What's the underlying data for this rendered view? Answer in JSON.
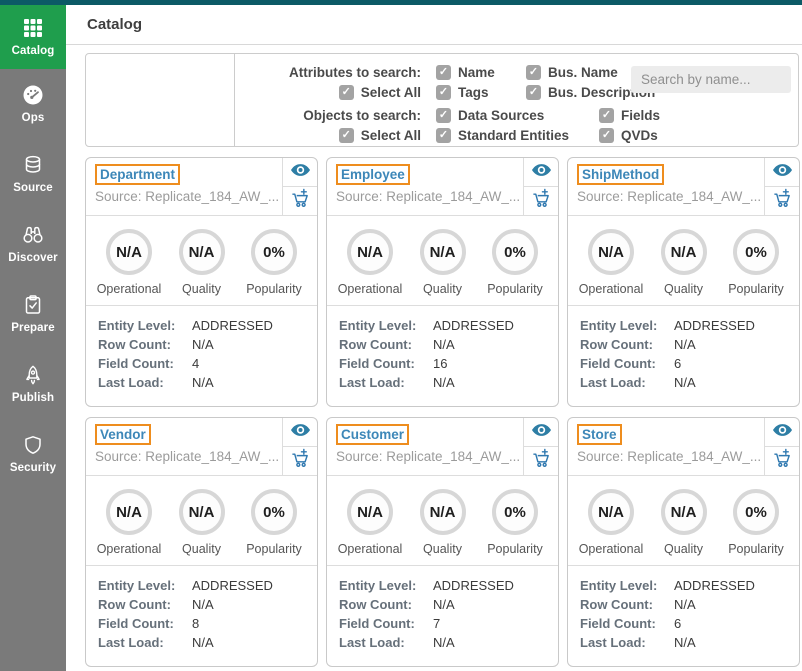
{
  "colors": {
    "strip": "#0c5a66",
    "sidebar-bg": "#7a7a7a",
    "active-green": "#1f9e4d",
    "orange": "#ee8d1e",
    "link-blue": "#3d87b8",
    "eye-teal": "#2e7ea5",
    "cart-blue": "#3079b0"
  },
  "header": {
    "title": "Catalog"
  },
  "sidebar": {
    "items": [
      {
        "label": "Catalog",
        "icon": "grid-icon",
        "active": true
      },
      {
        "label": "Ops",
        "icon": "gauge-icon",
        "active": false
      },
      {
        "label": "Source",
        "icon": "database-icon",
        "active": false
      },
      {
        "label": "Discover",
        "icon": "binoculars-icon",
        "active": false
      },
      {
        "label": "Prepare",
        "icon": "clipboard-check-icon",
        "active": false
      },
      {
        "label": "Publish",
        "icon": "rocket-icon",
        "active": false
      },
      {
        "label": "Security",
        "icon": "shield-icon",
        "active": false
      }
    ]
  },
  "filters": {
    "attributes": {
      "label": "Attributes to search:",
      "select_all": "Select All",
      "row1": [
        "Name",
        "Bus. Name"
      ],
      "row2": [
        "Tags",
        "Bus. Description"
      ]
    },
    "objects": {
      "label": "Objects to search:",
      "select_all": "Select All",
      "row1": [
        "Data Sources",
        "Fields"
      ],
      "row2": [
        "Standard Entities",
        "QVDs"
      ]
    },
    "search_placeholder": "Search by name..."
  },
  "card_labels": {
    "gauges": [
      "Operational",
      "Quality",
      "Popularity"
    ],
    "details": [
      "Entity Level:",
      "Row Count:",
      "Field Count:",
      "Last Load:"
    ]
  },
  "cards": [
    {
      "name": "Department",
      "source": "Source: Replicate_184_AW_...",
      "gauge_values": [
        "N/A",
        "N/A",
        "0%"
      ],
      "entity_level": "ADDRESSED",
      "row_count": "N/A",
      "field_count": "4",
      "last_load": "N/A"
    },
    {
      "name": "Employee",
      "source": "Source: Replicate_184_AW_...",
      "gauge_values": [
        "N/A",
        "N/A",
        "0%"
      ],
      "entity_level": "ADDRESSED",
      "row_count": "N/A",
      "field_count": "16",
      "last_load": "N/A"
    },
    {
      "name": "ShipMethod",
      "source": "Source: Replicate_184_AW_...",
      "gauge_values": [
        "N/A",
        "N/A",
        "0%"
      ],
      "entity_level": "ADDRESSED",
      "row_count": "N/A",
      "field_count": "6",
      "last_load": "N/A"
    },
    {
      "name": "Vendor",
      "source": "Source: Replicate_184_AW_...",
      "gauge_values": [
        "N/A",
        "N/A",
        "0%"
      ],
      "entity_level": "ADDRESSED",
      "row_count": "N/A",
      "field_count": "8",
      "last_load": "N/A"
    },
    {
      "name": "Customer",
      "source": "Source: Replicate_184_AW_...",
      "gauge_values": [
        "N/A",
        "N/A",
        "0%"
      ],
      "entity_level": "ADDRESSED",
      "row_count": "N/A",
      "field_count": "7",
      "last_load": "N/A"
    },
    {
      "name": "Store",
      "source": "Source: Replicate_184_AW_...",
      "gauge_values": [
        "N/A",
        "N/A",
        "0%"
      ],
      "entity_level": "ADDRESSED",
      "row_count": "N/A",
      "field_count": "6",
      "last_load": "N/A"
    }
  ]
}
